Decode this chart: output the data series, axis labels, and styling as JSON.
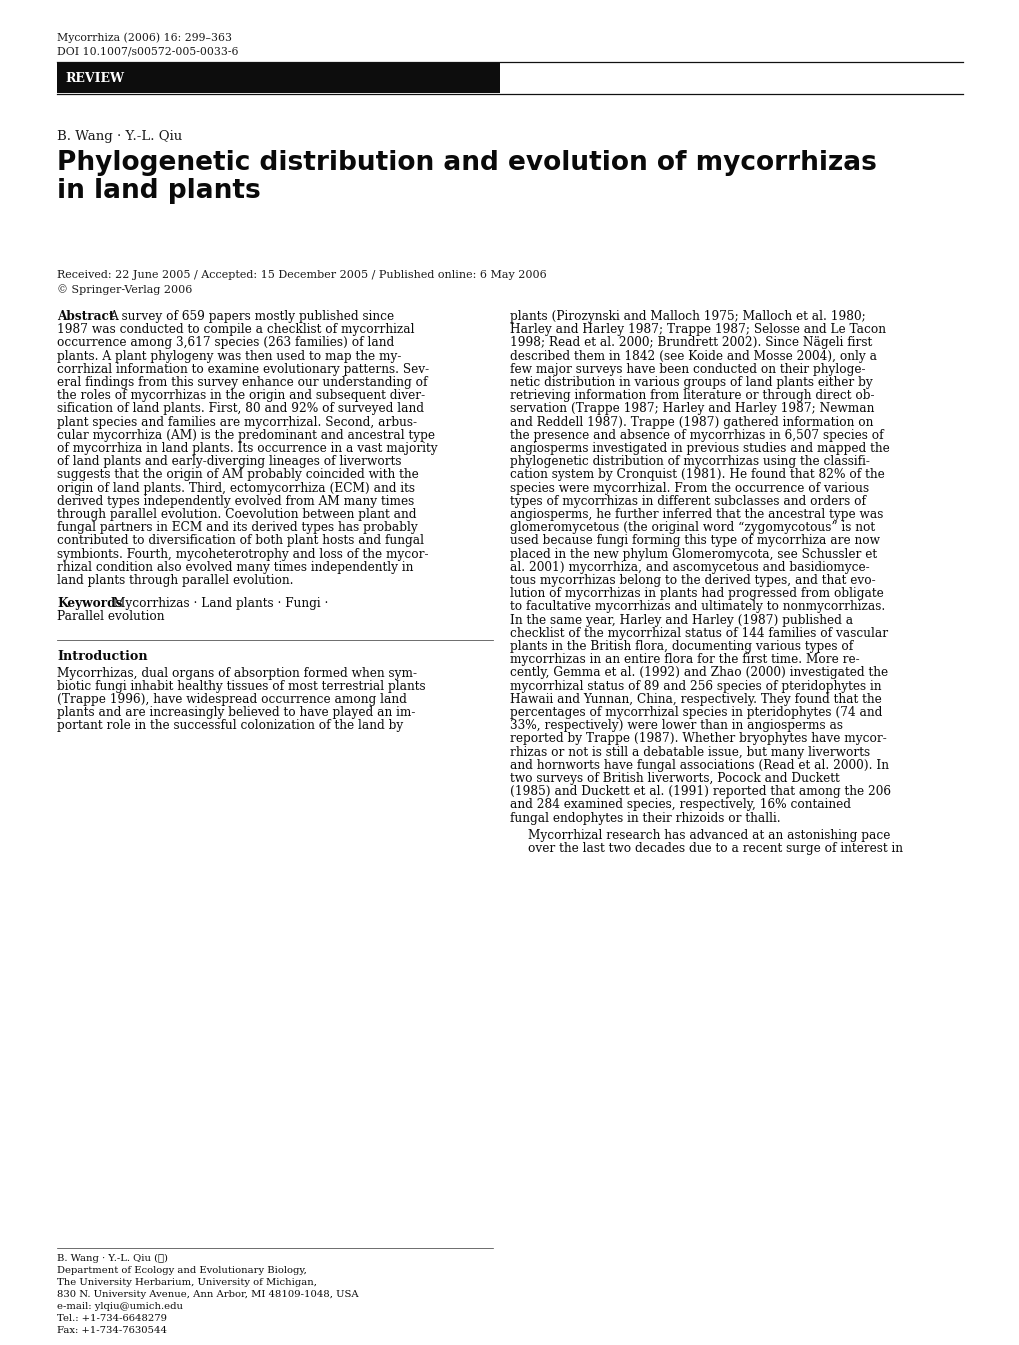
{
  "bg_color": "#ffffff",
  "journal_line1": "Mycorrhiza (2006) 16: 299–363",
  "journal_line2": "DOI 10.1007/s00572-005-0033-6",
  "review_label": "REVIEW",
  "authors": "B. Wang · Y.-L. Qiu",
  "title_line1": "Phylogenetic distribution and evolution of mycorrhizas",
  "title_line2": "in land plants",
  "received": "Received: 22 June 2005 / Accepted: 15 December 2005 / Published online: 6 May 2006",
  "copyright": "© Springer-Verlag 2006",
  "abstract_text": "A survey of 659 papers mostly published since 1987 was conducted to compile a checklist of mycorrhizal occurrence among 3,617 species (263 families) of land plants. A plant phylogeny was then used to map the my-corrhizal information to examine evolutionary patterns. Sev-eral findings from this survey enhance our understanding of the roles of mycorrhizas in the origin and subsequent diver-sification of land plants. First, 80 and 92% of surveyed land plant species and families are mycorrhizal. Second, arbus-cular mycorrhiza (AM) is the predominant and ancestral type of mycorrhiza in land plants. Its occurrence in a vast majority of land plants and early-diverging lineages of liverworts suggests that the origin of AM probably coincided with the origin of land plants. Third, ectomycorrhiza (ECM) and its derived types independently evolved from AM many times through parallel evolution. Coevolution between plant and fungal partners in ECM and its derived types has probably contributed to diversification of both plant hosts and fungal symbionts. Fourth, mycoheterotrophy and loss of the mycor-rhizal condition also evolved many times independently in land plants through parallel evolution.",
  "keywords_text": "Mycorrhizas · Land plants · Fungi ·",
  "keywords_line2": "Parallel evolution",
  "intro_text": "Mycorrhizas, dual organs of absorption formed when sym-biotic fungi inhabit healthy tissues of most terrestrial plants (Trappe 1996), have widespread occurrence among land plants and are increasingly believed to have played an im-portant role in the successful colonization of the land by",
  "right_col_para1": [
    "plants (Pirozynski and Malloch 1975; Malloch et al. 1980;",
    "Harley and Harley 1987; Trappe 1987; Selosse and Le Tacon",
    "1998; Read et al. 2000; Brundrett 2002). Since Nägeli first",
    "described them in 1842 (see Koide and Mosse 2004), only a",
    "few major surveys have been conducted on their phyloge-",
    "netic distribution in various groups of land plants either by",
    "retrieving information from literature or through direct ob-",
    "servation (Trappe 1987; Harley and Harley 1987; Newman",
    "and Reddell 1987). Trappe (1987) gathered information on",
    "the presence and absence of mycorrhizas in 6,507 species of",
    "angiosperms investigated in previous studies and mapped the",
    "phylogenetic distribution of mycorrhizas using the classifi-",
    "cation system by Cronquist (1981). He found that 82% of the",
    "species were mycorrhizal. From the occurrence of various",
    "types of mycorrhizas in different subclasses and orders of",
    "angiosperms, he further inferred that the ancestral type was",
    "glomeromycetous (the original word “zygomycotous” is not",
    "used because fungi forming this type of mycorrhiza are now",
    "placed in the new phylum Glomeromycota, see Schussler et",
    "al. 2001) mycorrhiza, and ascomycetous and basidiomyce-",
    "tous mycorrhizas belong to the derived types, and that evo-",
    "lution of mycorrhizas in plants had progressed from obligate",
    "to facultative mycorrhizas and ultimately to nonmycorrhizas.",
    "In the same year, Harley and Harley (1987) published a",
    "checklist of the mycorrhizal status of 144 families of vascular",
    "plants in the British flora, documenting various types of",
    "mycorrhizas in an entire flora for the first time. More re-",
    "cently, Gemma et al. (1992) and Zhao (2000) investigated the",
    "mycorrhizal status of 89 and 256 species of pteridophytes in",
    "Hawaii and Yunnan, China, respectively. They found that the",
    "percentages of mycorrhizal species in pteridophytes (74 and",
    "33%, respectively) were lower than in angiosperms as",
    "reported by Trappe (1987). Whether bryophytes have mycor-",
    "rhizas or not is still a debatable issue, but many liverworts",
    "and hornworts have fungal associations (Read et al. 2000). In",
    "two surveys of British liverworts, Pocock and Duckett",
    "(1985) and Duckett et al. (1991) reported that among the 206",
    "and 284 examined species, respectively, 16% contained",
    "fungal endophytes in their rhizoids or thalli."
  ],
  "right_col_para2": [
    "Mycorrhizal research has advanced at an astonishing pace",
    "over the last two decades due to a recent surge of interest in"
  ],
  "left_col_abstract_lines": [
    "A survey of 659 papers mostly published since",
    "1987 was conducted to compile a checklist of mycorrhizal",
    "occurrence among 3,617 species (263 families) of land",
    "plants. A plant phylogeny was then used to map the my-",
    "corrhizal information to examine evolutionary patterns. Sev-",
    "eral findings from this survey enhance our understanding of",
    "the roles of mycorrhizas in the origin and subsequent diver-",
    "sification of land plants. First, 80 and 92% of surveyed land",
    "plant species and families are mycorrhizal. Second, arbus-",
    "cular mycorrhiza (AM) is the predominant and ancestral type",
    "of mycorrhiza in land plants. Its occurrence in a vast majority",
    "of land plants and early-diverging lineages of liverworts",
    "suggests that the origin of AM probably coincided with the",
    "origin of land plants. Third, ectomycorrhiza (ECM) and its",
    "derived types independently evolved from AM many times",
    "through parallel evolution. Coevolution between plant and",
    "fungal partners in ECM and its derived types has probably",
    "contributed to diversification of both plant hosts and fungal",
    "symbionts. Fourth, mycoheterotrophy and loss of the mycor-",
    "rhizal condition also evolved many times independently in",
    "land plants through parallel evolution."
  ],
  "left_col_intro_lines": [
    "Mycorrhizas, dual organs of absorption formed when sym-",
    "biotic fungi inhabit healthy tissues of most terrestrial plants",
    "(Trappe 1996), have widespread occurrence among land",
    "plants and are increasingly believed to have played an im-",
    "portant role in the successful colonization of the land by"
  ],
  "footer_lines": [
    "B. Wang · Y.-L. Qiu (✉)",
    "Department of Ecology and Evolutionary Biology,",
    "The University Herbarium, University of Michigan,",
    "830 N. University Avenue, Ann Arbor, MI 48109-1048, USA",
    "e-mail: ylqiu@umich.edu",
    "Tel.: +1-734-6648279",
    "Fax: +1-734-7630544"
  ]
}
